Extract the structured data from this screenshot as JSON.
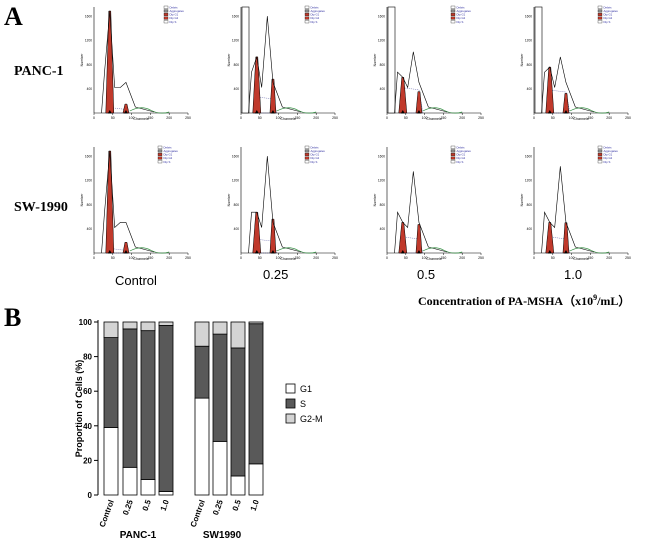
{
  "panel_a": {
    "label": "A",
    "rows": [
      "PANC-1",
      "SW-1990"
    ],
    "columns": [
      "Control",
      "0.25",
      "0.5",
      "1.0"
    ],
    "concentration_label_prefix": "Concentration of PA-MSHA（x10",
    "concentration_exponent": "9",
    "concentration_label_suffix": "/mL）",
    "histogram_x_title": "Channels",
    "histogram_y_title": "Number",
    "histogram_x_ticks": [
      "0",
      "50",
      "100",
      "150",
      "200",
      "250"
    ],
    "histogram_y_ticks": [
      "400",
      "800",
      "1200",
      "1600"
    ],
    "histogram_legend": [
      "Debris",
      "Aggregates",
      "Dip G1",
      "Dip G2",
      "Dip S"
    ]
  },
  "panel_b": {
    "label": "B"
  },
  "colors": {
    "g1": "#ffffff",
    "s": "#595959",
    "g2m": "#d4d4d4",
    "red_fill": "#c0392b",
    "green_line": "#2e8b3d"
  },
  "chart_data": {
    "type": "bar",
    "stacked": true,
    "title": "",
    "ylabel": "Proportion of Cells  (%)",
    "xlabel": "",
    "ylim": [
      0,
      100
    ],
    "yticks": [
      "0",
      "20",
      "40",
      "60",
      "80",
      "100"
    ],
    "groups": [
      {
        "name": "PANC-1",
        "categories": [
          "Control",
          "0.25",
          "0.5",
          "1.0"
        ]
      },
      {
        "name": "SW1990",
        "categories": [
          "Control",
          "0.25",
          "0.5",
          "1.0"
        ]
      }
    ],
    "series": [
      {
        "name": "G1",
        "values": [
          39,
          16,
          9,
          2,
          56,
          31,
          11,
          18
        ]
      },
      {
        "name": "S",
        "values": [
          52,
          80,
          86,
          96,
          30,
          62,
          74,
          81
        ]
      },
      {
        "name": "G2-M",
        "values": [
          9,
          4,
          5,
          2,
          14,
          7,
          15,
          1
        ]
      }
    ],
    "legend": [
      "G1",
      "S",
      "G2-M"
    ],
    "legend_position": "right"
  }
}
